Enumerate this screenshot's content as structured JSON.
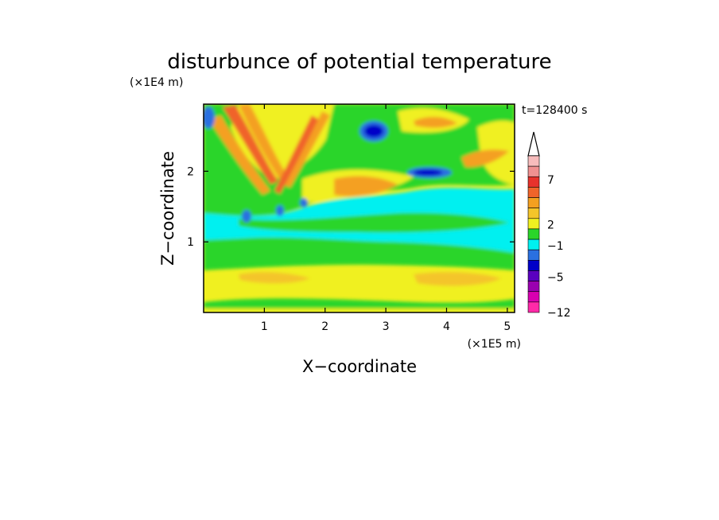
{
  "chart_data": {
    "type": "heatmap",
    "title": "disturbunce of potential temperature",
    "y_unit_label": "(×1E4 m)",
    "x_unit_label": "(×1E5 m)",
    "time_label": "t=128400 s",
    "xlabel": "X−coordinate",
    "ylabel": "Z−coordinate",
    "x_ticks": [
      "1",
      "2",
      "3",
      "4",
      "5"
    ],
    "x_tick_values": [
      1,
      2,
      3,
      4,
      5
    ],
    "xlim": [
      0,
      5.12
    ],
    "y_ticks": [
      "1",
      "2"
    ],
    "y_tick_values": [
      1,
      2
    ],
    "ylim": [
      0,
      2.95
    ],
    "colorbar": {
      "labels": [
        "7",
        "2",
        "−1",
        "−5",
        "−12"
      ],
      "label_values": [
        7,
        2,
        -1,
        -5,
        -12
      ],
      "extend": "max",
      "colors_top_to_bottom": [
        "#f7bcbc",
        "#f09090",
        "#e8322c",
        "#f0642a",
        "#f4a020",
        "#f4c52a",
        "#f0f020",
        "#2ad52a",
        "#00f0f0",
        "#2a70e0",
        "#0000c8",
        "#5a00c0",
        "#9a00b0",
        "#d800b0",
        "#ff2aa8"
      ]
    },
    "regions_approx": [
      {
        "value": 2,
        "desc": "yellow background field"
      },
      {
        "value": 4,
        "desc": "orange V-shaped wave pattern near x=1, z=1.5-3"
      },
      {
        "value": -1,
        "desc": "cyan band near z=1.0-1.4"
      },
      {
        "value": -5,
        "desc": "dark blue blobs near (x=2.8, z=2.6) and (x=3.7, z=2.0)"
      },
      {
        "value": 0,
        "desc": "green layers near z=0.3-0.9"
      }
    ]
  }
}
